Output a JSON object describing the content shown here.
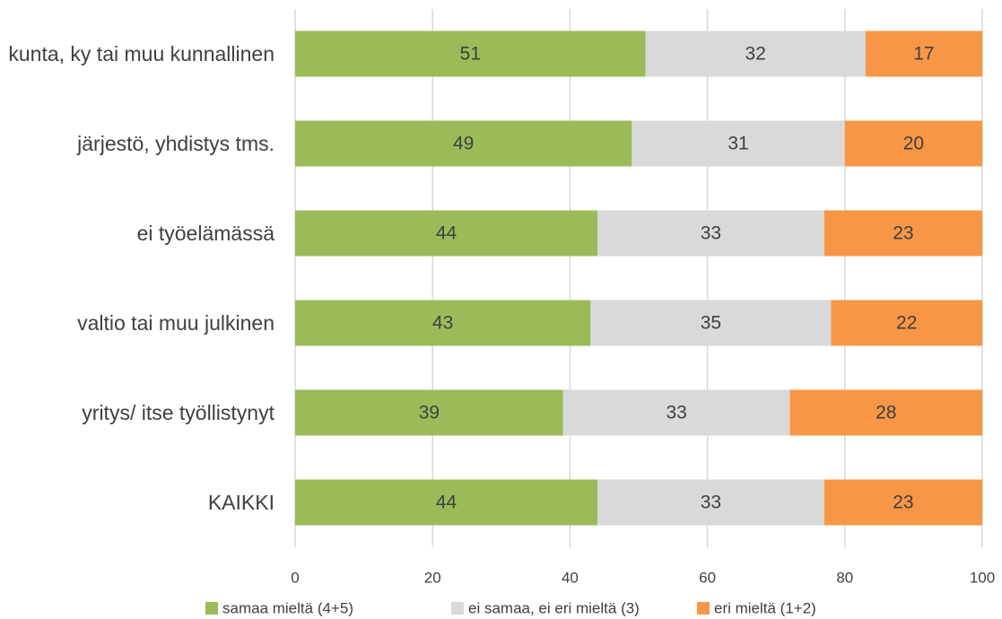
{
  "chart_data": {
    "type": "stacked_barh",
    "categories": [
      "kunta, ky tai muu kunnallinen",
      "järjestö, yhdistys tms.",
      "ei työelämässä",
      "valtio tai muu julkinen",
      "yritys/ itse työllistynyt",
      "KAIKKI"
    ],
    "series": [
      {
        "name": "samaa mieltä (4+5)",
        "color": "#9bbb59",
        "values": [
          51,
          49,
          44,
          43,
          39,
          44
        ]
      },
      {
        "name": "ei samaa, ei eri mieltä (3)",
        "color": "#d9d9d9",
        "values": [
          32,
          31,
          33,
          35,
          33,
          33
        ]
      },
      {
        "name": "eri mieltä (1+2)",
        "color": "#f79646",
        "values": [
          17,
          20,
          23,
          22,
          28,
          23
        ]
      }
    ],
    "xlim": [
      0,
      100
    ],
    "xticks": [
      0,
      20,
      40,
      60,
      80,
      100
    ],
    "grid": true,
    "legend": "bottom"
  }
}
